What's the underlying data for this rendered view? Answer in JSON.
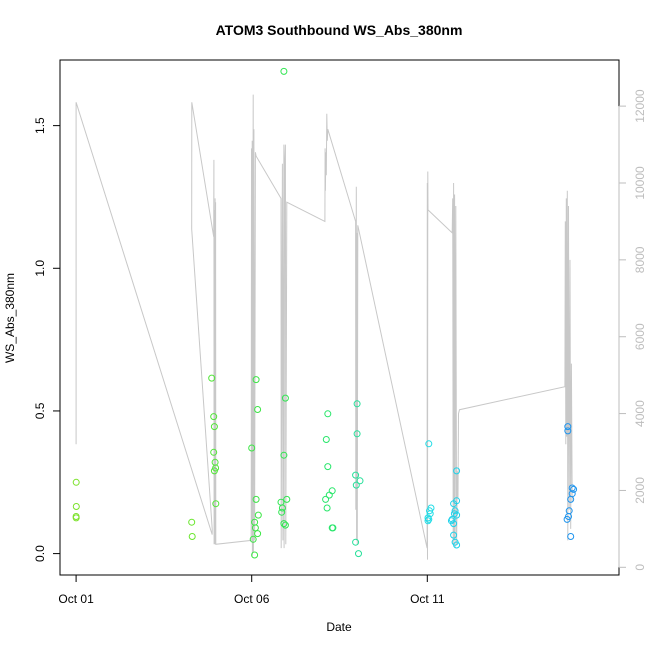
{
  "chart_data": {
    "type": "scatter",
    "title": "ATOM3 Southbound WS_Abs_380nm",
    "xlabel": "Date",
    "ylabel": "WS_Abs_380nm",
    "x_type": "date",
    "xlim": [
      "2016-09-30T13:00",
      "2016-10-16T11:00"
    ],
    "ylim": [
      -0.075,
      1.73
    ],
    "y2lim": [
      -200,
      13200
    ],
    "x_ticks": [
      {
        "value": "2016-10-01",
        "label": "Oct 01"
      },
      {
        "value": "2016-10-06",
        "label": "Oct 06"
      },
      {
        "value": "2016-10-11",
        "label": "Oct 11"
      }
    ],
    "y_ticks": [
      {
        "value": 0.0,
        "label": "0.0"
      },
      {
        "value": 0.5,
        "label": "0.5"
      },
      {
        "value": 1.0,
        "label": "1.0"
      },
      {
        "value": 1.5,
        "label": "1.5"
      }
    ],
    "y2_ticks": [
      {
        "value": 0,
        "label": "0"
      },
      {
        "value": 2000,
        "label": "2000"
      },
      {
        "value": 4000,
        "label": "4000"
      },
      {
        "value": 6000,
        "label": "6000"
      },
      {
        "value": 8000,
        "label": "8000"
      },
      {
        "value": 10000,
        "label": "10000"
      },
      {
        "value": 12000,
        "label": "12000"
      }
    ],
    "grid": false,
    "legend": "none",
    "colors": {
      "line": "#c8c8c8",
      "axis": "#000000",
      "right_axis": "#bdbdbd"
    },
    "points": [
      {
        "x": "2016-10-01T00:05",
        "y": 0.25,
        "color": "#7be22a"
      },
      {
        "x": "2016-10-01T00:10",
        "y": 0.165,
        "color": "#7be22a"
      },
      {
        "x": "2016-10-01T00:02",
        "y": 0.13,
        "color": "#7be22a"
      },
      {
        "x": "2016-10-01T00:05",
        "y": 0.125,
        "color": "#7be22a"
      },
      {
        "x": "2016-10-04T07:00",
        "y": 0.11,
        "color": "#6ae62e"
      },
      {
        "x": "2016-10-04T07:20",
        "y": 0.06,
        "color": "#6ae62e"
      },
      {
        "x": "2016-10-04T20:40",
        "y": 0.615,
        "color": "#52e638"
      },
      {
        "x": "2016-10-04T22:00",
        "y": 0.48,
        "color": "#52e638"
      },
      {
        "x": "2016-10-04T22:30",
        "y": 0.445,
        "color": "#52e638"
      },
      {
        "x": "2016-10-04T22:00",
        "y": 0.355,
        "color": "#52e638"
      },
      {
        "x": "2016-10-04T23:00",
        "y": 0.32,
        "color": "#52e638"
      },
      {
        "x": "2016-10-04T23:20",
        "y": 0.3,
        "color": "#52e638"
      },
      {
        "x": "2016-10-04T22:30",
        "y": 0.29,
        "color": "#52e638"
      },
      {
        "x": "2016-10-04T23:30",
        "y": 0.175,
        "color": "#52e638"
      },
      {
        "x": "2016-10-06T00:00",
        "y": 0.37,
        "color": "#3ce645"
      },
      {
        "x": "2016-10-06T03:00",
        "y": 0.61,
        "color": "#3ce645"
      },
      {
        "x": "2016-10-06T04:00",
        "y": 0.505,
        "color": "#3ce645"
      },
      {
        "x": "2016-10-06T03:00",
        "y": 0.19,
        "color": "#3ce645"
      },
      {
        "x": "2016-10-06T04:30",
        "y": 0.135,
        "color": "#3ce645"
      },
      {
        "x": "2016-10-06T02:00",
        "y": 0.11,
        "color": "#3ce645"
      },
      {
        "x": "2016-10-06T02:30",
        "y": 0.09,
        "color": "#3ce645"
      },
      {
        "x": "2016-10-06T04:00",
        "y": 0.07,
        "color": "#3ce645"
      },
      {
        "x": "2016-10-06T01:00",
        "y": 0.05,
        "color": "#3ce645"
      },
      {
        "x": "2016-10-06T02:00",
        "y": -0.005,
        "color": "#3ce645"
      },
      {
        "x": "2016-10-06T22:00",
        "y": 1.69,
        "color": "#30e651"
      },
      {
        "x": "2016-10-06T23:00",
        "y": 0.545,
        "color": "#30e651"
      },
      {
        "x": "2016-10-06T22:00",
        "y": 0.345,
        "color": "#30e651"
      },
      {
        "x": "2016-10-07T00:00",
        "y": 0.19,
        "color": "#30e651"
      },
      {
        "x": "2016-10-06T20:00",
        "y": 0.18,
        "color": "#30e651"
      },
      {
        "x": "2016-10-06T21:00",
        "y": 0.16,
        "color": "#30e651"
      },
      {
        "x": "2016-10-06T20:30",
        "y": 0.145,
        "color": "#30e651"
      },
      {
        "x": "2016-10-06T22:00",
        "y": 0.105,
        "color": "#30e651"
      },
      {
        "x": "2016-10-06T23:00",
        "y": 0.1,
        "color": "#30e651"
      },
      {
        "x": "2016-10-08T04:00",
        "y": 0.49,
        "color": "#28e66a"
      },
      {
        "x": "2016-10-08T03:00",
        "y": 0.4,
        "color": "#28e66a"
      },
      {
        "x": "2016-10-08T04:00",
        "y": 0.305,
        "color": "#28e66a"
      },
      {
        "x": "2016-10-08T07:00",
        "y": 0.22,
        "color": "#28e66a"
      },
      {
        "x": "2016-10-08T05:00",
        "y": 0.205,
        "color": "#28e66a"
      },
      {
        "x": "2016-10-08T02:30",
        "y": 0.19,
        "color": "#28e66a"
      },
      {
        "x": "2016-10-08T03:30",
        "y": 0.16,
        "color": "#28e66a"
      },
      {
        "x": "2016-10-08T07:00",
        "y": 0.09,
        "color": "#28e66a"
      },
      {
        "x": "2016-10-08T07:30",
        "y": 0.09,
        "color": "#28e66a"
      },
      {
        "x": "2016-10-09T00:00",
        "y": 0.525,
        "color": "#26e09a"
      },
      {
        "x": "2016-10-09T00:00",
        "y": 0.42,
        "color": "#26e09a"
      },
      {
        "x": "2016-10-08T23:00",
        "y": 0.275,
        "color": "#26e09a"
      },
      {
        "x": "2016-10-09T02:00",
        "y": 0.255,
        "color": "#26e09a"
      },
      {
        "x": "2016-10-08T23:30",
        "y": 0.24,
        "color": "#26e09a"
      },
      {
        "x": "2016-10-08T23:00",
        "y": 0.04,
        "color": "#26e09a"
      },
      {
        "x": "2016-10-09T01:00",
        "y": 0.0,
        "color": "#26e09a"
      },
      {
        "x": "2016-10-11T01:00",
        "y": 0.385,
        "color": "#20dce6"
      },
      {
        "x": "2016-10-11T02:30",
        "y": 0.16,
        "color": "#20dce6"
      },
      {
        "x": "2016-10-11T01:30",
        "y": 0.15,
        "color": "#20dce6"
      },
      {
        "x": "2016-10-11T02:00",
        "y": 0.14,
        "color": "#20dce6"
      },
      {
        "x": "2016-10-11T00:30",
        "y": 0.125,
        "color": "#20dce6"
      },
      {
        "x": "2016-10-11T01:00",
        "y": 0.12,
        "color": "#20dce6"
      },
      {
        "x": "2016-10-11T00:30",
        "y": 0.115,
        "color": "#20dce6"
      },
      {
        "x": "2016-10-11T20:00",
        "y": 0.29,
        "color": "#1ed2ea"
      },
      {
        "x": "2016-10-11T20:00",
        "y": 0.185,
        "color": "#1ed2ea"
      },
      {
        "x": "2016-10-11T18:00",
        "y": 0.175,
        "color": "#1ed2ea"
      },
      {
        "x": "2016-10-11T19:00",
        "y": 0.15,
        "color": "#1ed2ea"
      },
      {
        "x": "2016-10-11T18:30",
        "y": 0.14,
        "color": "#1ed2ea"
      },
      {
        "x": "2016-10-11T20:00",
        "y": 0.135,
        "color": "#1ed2ea"
      },
      {
        "x": "2016-10-11T17:00",
        "y": 0.12,
        "color": "#1ed2ea"
      },
      {
        "x": "2016-10-11T16:30",
        "y": 0.115,
        "color": "#1ed2ea"
      },
      {
        "x": "2016-10-11T18:00",
        "y": 0.105,
        "color": "#1ed2ea"
      },
      {
        "x": "2016-10-11T18:00",
        "y": 0.065,
        "color": "#1ed2ea"
      },
      {
        "x": "2016-10-11T19:00",
        "y": 0.04,
        "color": "#1ed2ea"
      },
      {
        "x": "2016-10-11T20:00",
        "y": 0.03,
        "color": "#1ed2ea"
      },
      {
        "x": "2016-10-15T00:00",
        "y": 0.445,
        "color": "#1d94ee"
      },
      {
        "x": "2016-10-15T00:00",
        "y": 0.43,
        "color": "#1d94ee"
      },
      {
        "x": "2016-10-15T03:00",
        "y": 0.23,
        "color": "#1d94ee"
      },
      {
        "x": "2016-10-15T04:00",
        "y": 0.225,
        "color": "#1d94ee"
      },
      {
        "x": "2016-10-15T03:00",
        "y": 0.21,
        "color": "#1d94ee"
      },
      {
        "x": "2016-10-15T02:00",
        "y": 0.19,
        "color": "#1d94ee"
      },
      {
        "x": "2016-10-15T01:00",
        "y": 0.15,
        "color": "#1d94ee"
      },
      {
        "x": "2016-10-15T00:30",
        "y": 0.13,
        "color": "#1d94ee"
      },
      {
        "x": "2016-10-14T23:30",
        "y": 0.12,
        "color": "#1d94ee"
      },
      {
        "x": "2016-10-15T02:00",
        "y": 0.06,
        "color": "#1d94ee"
      }
    ],
    "right_axis_line": [
      [
        "2016-10-01T00:00",
        3700
      ],
      [
        "2016-10-01T00:01",
        3200
      ],
      [
        "2016-10-01T00:02",
        12100
      ],
      [
        "2016-10-04T21:00",
        850
      ],
      [
        "2016-10-04T21:02",
        1000
      ],
      [
        "2016-10-04T07:00",
        8800
      ],
      [
        "2016-10-04T07:02",
        12100
      ],
      [
        "2016-10-04T22:00",
        8600
      ],
      [
        "2016-10-04T22:10",
        10600
      ],
      [
        "2016-10-04T22:20",
        600
      ],
      [
        "2016-10-04T22:30",
        9300
      ],
      [
        "2016-10-04T22:40",
        600
      ],
      [
        "2016-10-04T23:00",
        9600
      ],
      [
        "2016-10-04T23:10",
        600
      ],
      [
        "2016-10-04T23:20",
        9500
      ],
      [
        "2016-10-04T23:30",
        600
      ],
      [
        "2016-10-05T23:40",
        700
      ],
      [
        "2016-10-05T23:50",
        10900
      ],
      [
        "2016-10-06T00:00",
        9200
      ],
      [
        "2016-10-06T00:10",
        1200
      ],
      [
        "2016-10-06T00:20",
        11100
      ],
      [
        "2016-10-06T00:30",
        300
      ],
      [
        "2016-10-06T01:00",
        12300
      ],
      [
        "2016-10-06T01:10",
        400
      ],
      [
        "2016-10-06T01:30",
        11400
      ],
      [
        "2016-10-06T02:00",
        700
      ],
      [
        "2016-10-06T02:30",
        10800
      ],
      [
        "2016-10-06T03:00",
        10700
      ],
      [
        "2016-10-06T20:00",
        9600
      ],
      [
        "2016-10-06T20:10",
        500
      ],
      [
        "2016-10-06T21:00",
        10500
      ],
      [
        "2016-10-06T21:20",
        700
      ],
      [
        "2016-10-06T22:00",
        11000
      ],
      [
        "2016-10-06T22:10",
        500
      ],
      [
        "2016-10-06T22:30",
        10400
      ],
      [
        "2016-10-06T23:00",
        11000
      ],
      [
        "2016-10-06T23:20",
        600
      ],
      [
        "2016-10-07T00:00",
        9500
      ],
      [
        "2016-10-08T02:00",
        9000
      ],
      [
        "2016-10-08T02:10",
        10900
      ],
      [
        "2016-10-08T02:20",
        9800
      ],
      [
        "2016-10-08T02:40",
        10800
      ],
      [
        "2016-10-08T03:00",
        10200
      ],
      [
        "2016-10-08T03:20",
        11800
      ],
      [
        "2016-10-08T03:40",
        11100
      ],
      [
        "2016-10-08T04:00",
        11400
      ],
      [
        "2016-10-08T23:00",
        9000
      ],
      [
        "2016-10-08T23:10",
        1500
      ],
      [
        "2016-10-08T23:30",
        9900
      ],
      [
        "2016-10-08T23:40",
        700
      ],
      [
        "2016-10-09T00:00",
        8700
      ],
      [
        "2016-10-09T00:10",
        600
      ],
      [
        "2016-10-09T00:30",
        8900
      ],
      [
        "2016-10-10T23:50",
        500
      ],
      [
        "2016-10-11T00:00",
        10000
      ],
      [
        "2016-10-11T00:10",
        200
      ],
      [
        "2016-10-11T00:20",
        10300
      ],
      [
        "2016-10-11T00:30",
        9300
      ],
      [
        "2016-10-11T17:00",
        8700
      ],
      [
        "2016-10-11T17:20",
        9600
      ],
      [
        "2016-10-11T17:40",
        600
      ],
      [
        "2016-10-11T18:00",
        10000
      ],
      [
        "2016-10-11T18:20",
        700
      ],
      [
        "2016-10-11T18:40",
        9700
      ],
      [
        "2016-10-11T19:00",
        500
      ],
      [
        "2016-10-11T19:30",
        9400
      ],
      [
        "2016-10-11T20:00",
        600
      ],
      [
        "2016-10-11T20:30",
        2500
      ],
      [
        "2016-10-11T21:00",
        1800
      ],
      [
        "2016-10-11T21:20",
        4000
      ],
      [
        "2016-10-11T22:00",
        4100
      ],
      [
        "2016-10-14T22:00",
        4700
      ],
      [
        "2016-10-14T22:20",
        9000
      ],
      [
        "2016-10-14T22:40",
        3200
      ],
      [
        "2016-10-14T23:00",
        9600
      ],
      [
        "2016-10-14T23:20",
        3400
      ],
      [
        "2016-10-14T23:40",
        9800
      ],
      [
        "2016-10-15T00:00",
        700
      ],
      [
        "2016-10-15T00:30",
        9400
      ],
      [
        "2016-10-15T01:00",
        1500
      ],
      [
        "2016-10-15T01:30",
        8000
      ],
      [
        "2016-10-15T02:00",
        1000
      ],
      [
        "2016-10-15T02:30",
        5300
      ],
      [
        "2016-10-15T03:00",
        1700
      ]
    ]
  }
}
